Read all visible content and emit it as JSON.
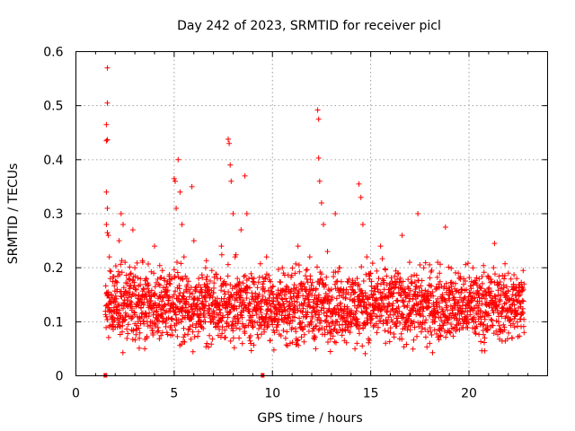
{
  "chart_data": {
    "type": "scatter",
    "title": "Day 242 of 2023, SRMTID for receiver picl",
    "xlabel": "GPS time / hours",
    "ylabel": "SRMTID / TECUs",
    "xlim": [
      0,
      24
    ],
    "ylim": [
      0,
      0.6
    ],
    "xticks": [
      0,
      5,
      10,
      15,
      20
    ],
    "xtick_labels": [
      "0",
      "5",
      "10",
      "15",
      "20"
    ],
    "yticks": [
      0,
      0.1,
      0.2,
      0.3,
      0.4,
      0.5,
      0.6
    ],
    "ytick_labels": [
      "0",
      "0.1",
      "0.2",
      "0.3",
      "0.4",
      "0.5",
      "0.6"
    ],
    "grid": true,
    "legend": "none",
    "marker": "plus",
    "color": "#ff0000",
    "series": [
      {
        "name": "SRMTID",
        "points": [
          [
            1.6,
            0.57
          ],
          [
            1.6,
            0.505
          ],
          [
            1.55,
            0.465
          ],
          [
            1.55,
            0.435
          ],
          [
            1.6,
            0.437
          ],
          [
            1.55,
            0.34
          ],
          [
            1.6,
            0.31
          ],
          [
            1.55,
            0.28
          ],
          [
            1.6,
            0.265
          ],
          [
            1.65,
            0.26
          ],
          [
            1.7,
            0.22
          ],
          [
            1.75,
            0.18
          ],
          [
            1.8,
            0.15
          ],
          [
            1.85,
            0.12
          ],
          [
            1.9,
            0.1
          ],
          [
            2.0,
            0.09
          ],
          [
            2.1,
            0.16
          ],
          [
            2.2,
            0.25
          ],
          [
            2.3,
            0.3
          ],
          [
            2.4,
            0.28
          ],
          [
            2.5,
            0.21
          ],
          [
            2.6,
            0.14
          ],
          [
            2.7,
            0.11
          ],
          [
            2.8,
            0.19
          ],
          [
            2.9,
            0.27
          ],
          [
            3.0,
            0.2
          ],
          [
            3.2,
            0.15
          ],
          [
            3.4,
            0.21
          ],
          [
            3.5,
            0.05
          ],
          [
            3.6,
            0.07
          ],
          [
            3.8,
            0.1
          ],
          [
            4.0,
            0.24
          ],
          [
            4.2,
            0.13
          ],
          [
            4.4,
            0.08
          ],
          [
            4.6,
            0.12
          ],
          [
            4.8,
            0.17
          ],
          [
            5.0,
            0.365
          ],
          [
            5.05,
            0.36
          ],
          [
            5.1,
            0.31
          ],
          [
            5.2,
            0.4
          ],
          [
            5.3,
            0.34
          ],
          [
            5.4,
            0.28
          ],
          [
            5.5,
            0.22
          ],
          [
            5.6,
            0.16
          ],
          [
            5.7,
            0.12
          ],
          [
            5.9,
            0.35
          ],
          [
            6.0,
            0.25
          ],
          [
            6.2,
            0.14
          ],
          [
            6.4,
            0.09
          ],
          [
            6.6,
            0.2
          ],
          [
            6.8,
            0.15
          ],
          [
            7.0,
            0.12
          ],
          [
            7.2,
            0.18
          ],
          [
            7.4,
            0.24
          ],
          [
            7.6,
            0.13
          ],
          [
            7.75,
            0.438
          ],
          [
            7.8,
            0.43
          ],
          [
            7.85,
            0.39
          ],
          [
            7.9,
            0.36
          ],
          [
            8.0,
            0.3
          ],
          [
            8.1,
            0.22
          ],
          [
            8.2,
            0.14
          ],
          [
            8.3,
            0.07
          ],
          [
            8.4,
            0.27
          ],
          [
            8.6,
            0.37
          ],
          [
            8.7,
            0.3
          ],
          [
            8.8,
            0.18
          ],
          [
            9.0,
            0.1
          ],
          [
            9.2,
            0.13
          ],
          [
            9.5,
            0.17
          ],
          [
            9.7,
            0.22
          ],
          [
            9.9,
            0.12
          ],
          [
            10.1,
            0.08
          ],
          [
            10.3,
            0.15
          ],
          [
            10.5,
            0.2
          ],
          [
            10.7,
            0.1
          ],
          [
            10.9,
            0.06
          ],
          [
            11.1,
            0.13
          ],
          [
            11.3,
            0.24
          ],
          [
            11.5,
            0.17
          ],
          [
            11.7,
            0.11
          ],
          [
            11.9,
            0.22
          ],
          [
            12.1,
            0.07
          ],
          [
            12.2,
            0.05
          ],
          [
            12.3,
            0.492
          ],
          [
            12.35,
            0.475
          ],
          [
            12.35,
            0.403
          ],
          [
            12.4,
            0.36
          ],
          [
            12.5,
            0.32
          ],
          [
            12.6,
            0.28
          ],
          [
            12.8,
            0.23
          ],
          [
            13.0,
            0.16
          ],
          [
            13.2,
            0.3
          ],
          [
            13.4,
            0.2
          ],
          [
            13.6,
            0.12
          ],
          [
            13.8,
            0.09
          ],
          [
            14.0,
            0.15
          ],
          [
            14.2,
            0.05
          ],
          [
            14.3,
            0.06
          ],
          [
            14.4,
            0.355
          ],
          [
            14.5,
            0.33
          ],
          [
            14.6,
            0.28
          ],
          [
            14.8,
            0.22
          ],
          [
            15.0,
            0.19
          ],
          [
            15.2,
            0.14
          ],
          [
            15.5,
            0.24
          ],
          [
            15.8,
            0.12
          ],
          [
            16.0,
            0.08
          ],
          [
            16.3,
            0.17
          ],
          [
            16.6,
            0.26
          ],
          [
            16.9,
            0.15
          ],
          [
            17.2,
            0.1
          ],
          [
            17.4,
            0.3
          ],
          [
            17.7,
            0.2
          ],
          [
            18.0,
            0.06
          ],
          [
            18.2,
            0.12
          ],
          [
            18.5,
            0.19
          ],
          [
            18.8,
            0.275
          ],
          [
            19.0,
            0.14
          ],
          [
            19.3,
            0.09
          ],
          [
            19.6,
            0.16
          ],
          [
            19.9,
            0.11
          ],
          [
            20.2,
            0.2
          ],
          [
            20.5,
            0.13
          ],
          [
            20.8,
            0.07
          ],
          [
            21.0,
            0.18
          ],
          [
            21.3,
            0.245
          ],
          [
            21.5,
            0.15
          ],
          [
            21.8,
            0.09
          ],
          [
            22.0,
            0.19
          ],
          [
            22.3,
            0.12
          ],
          [
            22.6,
            0.15
          ],
          [
            22.8,
            0.08
          ],
          [
            22.8,
            0.17
          ]
        ]
      }
    ],
    "background_band": {
      "x_start": 1.5,
      "x_end": 22.8,
      "y_center": 0.13,
      "y_spread": 0.065
    },
    "markers_on_axis": [
      1.5,
      9.5
    ]
  }
}
